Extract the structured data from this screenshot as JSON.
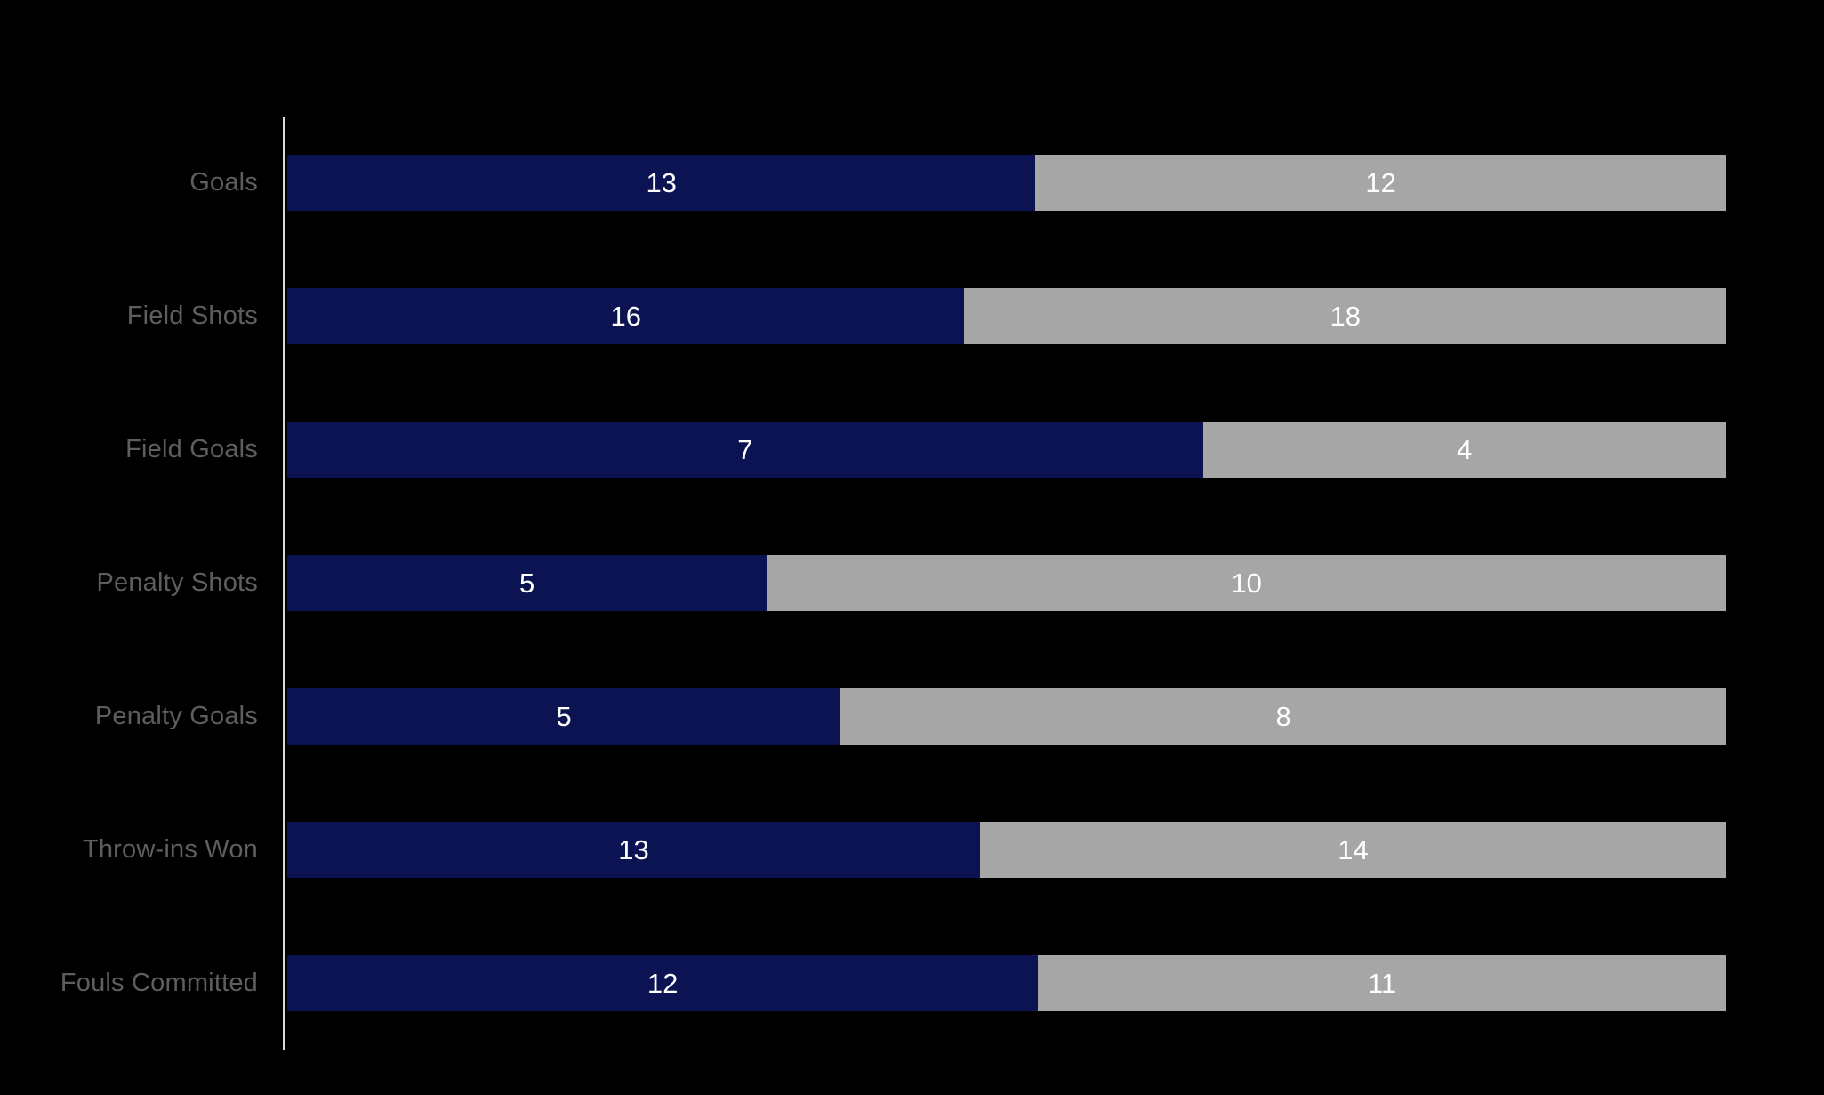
{
  "background_color": "#000000",
  "chart_data": {
    "type": "bar",
    "orientation": "horizontal",
    "stacked": "percent",
    "title": "",
    "legend_position": "none",
    "grid": false,
    "categories": [
      "Goals",
      "Field Shots",
      "Field Goals",
      "Penalty Shots",
      "Penalty Goals",
      "Throw-ins Won",
      "Fouls Committed"
    ],
    "series": [
      {
        "name": "navy-series",
        "color": "#0B1353",
        "values": [
          13,
          16,
          7,
          5,
          5,
          13,
          12
        ]
      },
      {
        "name": "gray-series",
        "color": "#A6A6A6",
        "values": [
          12,
          18,
          4,
          10,
          8,
          14,
          11
        ]
      }
    ],
    "value_label_color": "#FFFFFF",
    "category_label_color": "#5E5E5E",
    "axis_line_color": "#D9D9D9"
  }
}
